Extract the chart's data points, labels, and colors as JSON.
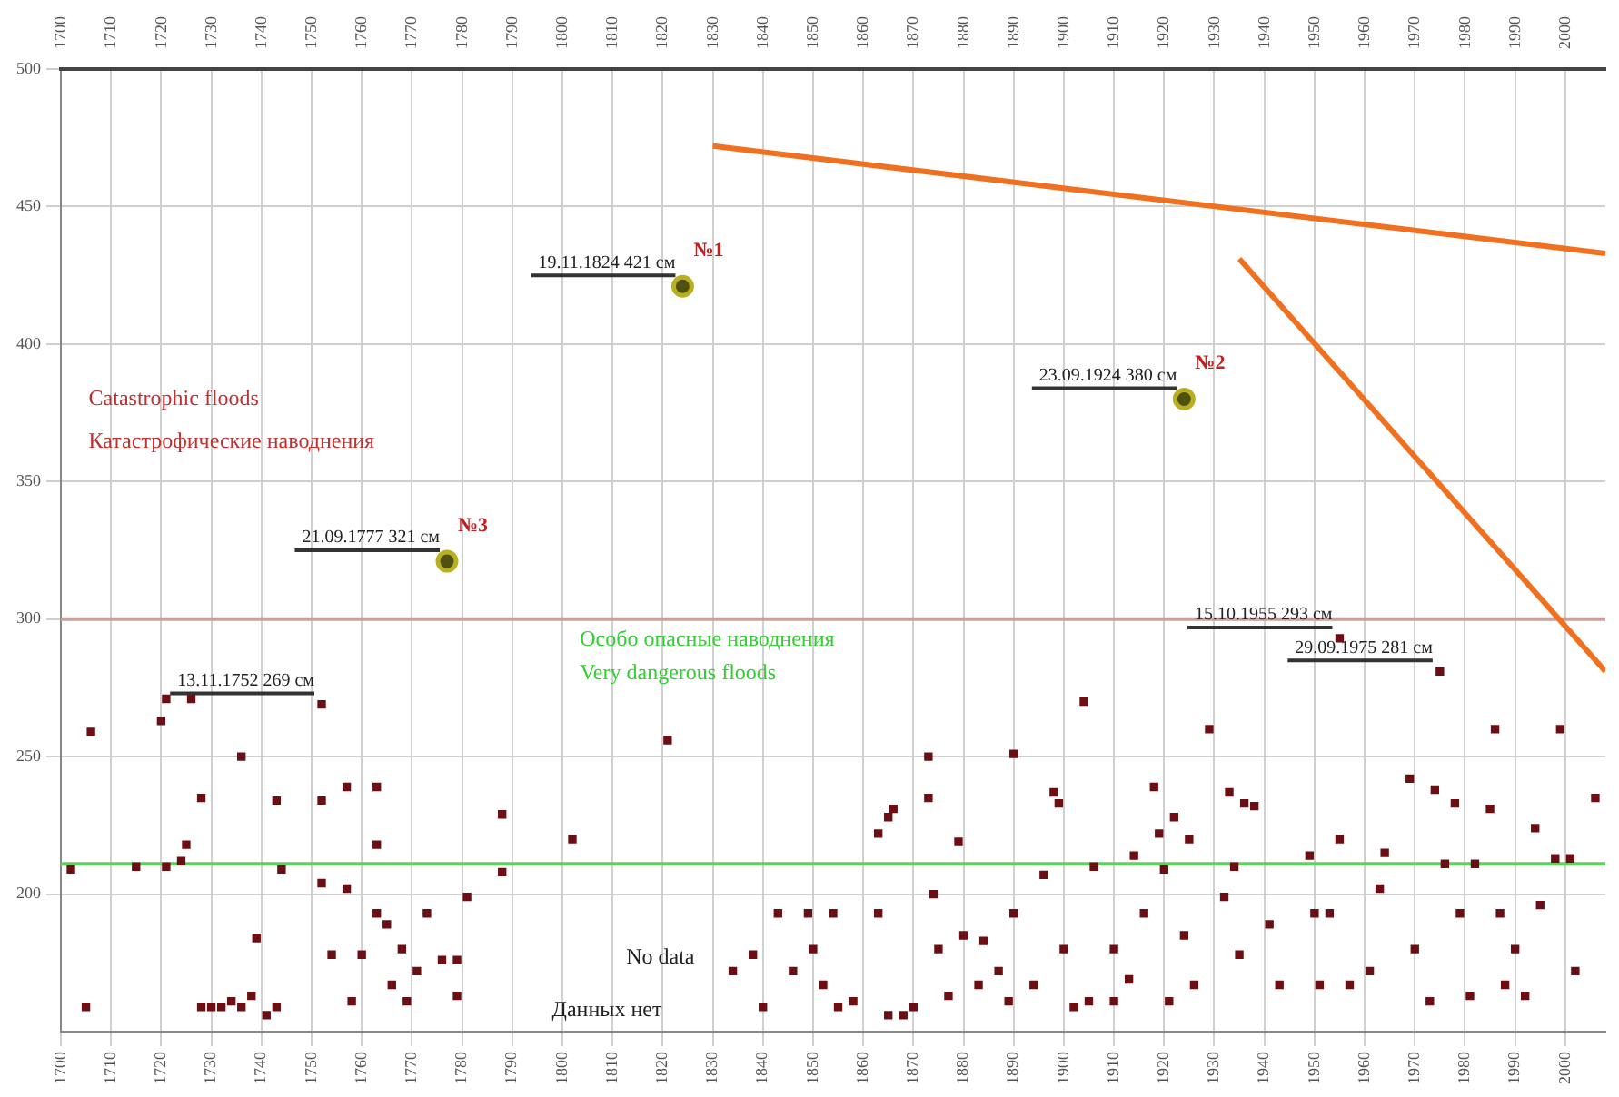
{
  "chart_data": {
    "type": "scatter",
    "xlim": [
      1700,
      2008
    ],
    "xticks": [
      1700,
      1710,
      1720,
      1730,
      1740,
      1750,
      1760,
      1770,
      1780,
      1790,
      1800,
      1810,
      1820,
      1830,
      1840,
      1850,
      1860,
      1870,
      1880,
      1890,
      1900,
      1910,
      1920,
      1930,
      1940,
      1950,
      1960,
      1970,
      1980,
      1990,
      2000
    ],
    "x2lim": [
      1700,
      2008
    ],
    "x2ticks": [
      1700,
      1710,
      1720,
      1730,
      1740,
      1750,
      1760,
      1770,
      1780,
      1790,
      1800,
      1810,
      1820,
      1830,
      1840,
      1850,
      1860,
      1870,
      1880,
      1890,
      1900,
      1910,
      1920,
      1930,
      1940,
      1950,
      1960,
      1970,
      1980,
      1990,
      2000
    ],
    "ylim": [
      150,
      500
    ],
    "yticks": [
      200,
      250,
      300,
      350,
      400,
      450,
      500
    ],
    "grid": true,
    "legend": false,
    "series": [
      {
        "type": "scatter",
        "marker": "square",
        "color": "#6b0f14",
        "x": [
          1702,
          1706,
          1705,
          1715,
          1720,
          1721,
          1726,
          1721,
          1724,
          1725,
          1728,
          1728,
          1730,
          1732,
          1734,
          1736,
          1738,
          1739,
          1741,
          1743,
          1736,
          1743,
          1744,
          1752,
          1752,
          1752,
          1754,
          1757,
          1757,
          1758,
          1760,
          1763,
          1763,
          1763,
          1765,
          1766,
          1768,
          1769,
          1771,
          1773,
          1776,
          1779,
          1779,
          1781,
          1788,
          1788,
          1802,
          1821,
          1834,
          1838,
          1840,
          1843,
          1846,
          1849,
          1850,
          1852,
          1854,
          1855,
          1858,
          1863,
          1863,
          1865,
          1866,
          1865,
          1868,
          1870,
          1873,
          1873,
          1874,
          1875,
          1877,
          1879,
          1880,
          1883,
          1884,
          1887,
          1889,
          1890,
          1890,
          1894,
          1896,
          1898,
          1899,
          1900,
          1902,
          1904,
          1905,
          1906,
          1910,
          1910,
          1913,
          1914,
          1916,
          1918,
          1919,
          1920,
          1921,
          1922,
          1924,
          1925,
          1926,
          1929,
          1932,
          1933,
          1934,
          1935,
          1936,
          1938,
          1941,
          1943,
          1949,
          1950,
          1951,
          1953,
          1955,
          1955,
          1957,
          1961,
          1963,
          1964,
          1969,
          1970,
          1973,
          1974,
          1975,
          1976,
          1978,
          1979,
          1981,
          1982,
          1985,
          1986,
          1987,
          1988,
          1990,
          1992,
          1994,
          1995,
          1998,
          1999,
          2001,
          2002,
          2006
        ],
        "values": [
          209,
          259,
          159,
          210,
          263,
          271,
          271,
          210,
          212,
          218,
          235,
          159,
          159,
          159,
          161,
          159,
          163,
          184,
          156,
          159,
          250,
          234,
          209,
          234,
          269,
          204,
          178,
          239,
          202,
          161,
          178,
          239,
          218,
          193,
          189,
          167,
          180,
          161,
          172,
          193,
          176,
          176,
          163,
          199,
          229,
          208,
          220,
          256,
          172,
          178,
          159,
          193,
          172,
          193,
          180,
          167,
          193,
          159,
          161,
          193,
          222,
          228,
          231,
          156,
          156,
          159,
          250,
          235,
          200,
          180,
          163,
          219,
          185,
          167,
          183,
          172,
          161,
          193,
          251,
          167,
          207,
          237,
          233,
          180,
          159,
          270,
          161,
          210,
          161,
          180,
          169,
          214,
          193,
          239,
          222,
          209,
          161,
          228,
          185,
          220,
          167,
          260,
          199,
          237,
          210,
          178,
          233,
          232,
          189,
          167,
          214,
          193,
          167,
          193,
          293,
          220,
          167,
          172,
          202,
          215,
          242,
          180,
          161,
          238,
          281,
          211,
          233,
          193,
          163,
          211,
          231,
          260,
          193,
          167,
          180,
          163,
          224,
          196,
          213,
          260,
          213,
          172,
          235
        ]
      },
      {
        "type": "scatter",
        "marker": "circle",
        "color": "#b8b020",
        "x": [
          1777,
          1824,
          1924
        ],
        "values": [
          321,
          421,
          380
        ]
      },
      {
        "type": "line",
        "color": "#f07020",
        "x": [
          1830,
          2008
        ],
        "values": [
          472,
          433
        ]
      },
      {
        "type": "line",
        "color": "#f07020",
        "x": [
          1935,
          2008
        ],
        "values": [
          431,
          281
        ]
      }
    ],
    "ref_lines": [
      {
        "axis": "y",
        "value": 300,
        "color": "#c8a0a0"
      },
      {
        "axis": "y",
        "value": 211,
        "color": "#60d060"
      }
    ],
    "annotations": [
      "Catastrophic floods",
      "Катастрофические наводнения",
      "Особо опасные наводнения",
      "Very dangerous floods",
      "No data",
      "Данных нет",
      {
        "text": "13.11.1752 269 см",
        "x": 1752,
        "y": 269
      },
      {
        "text": "21.09.1777 321 см",
        "x": 1777,
        "y": 321
      },
      {
        "text": "№3",
        "x": 1777,
        "y": 321
      },
      {
        "text": "19.11.1824 421 см",
        "x": 1824,
        "y": 421
      },
      {
        "text": "№1",
        "x": 1824,
        "y": 421
      },
      {
        "text": "23.09.1924 380 см",
        "x": 1924,
        "y": 380
      },
      {
        "text": "№2",
        "x": 1924,
        "y": 380
      },
      {
        "text": "15.10.1955 293 см",
        "x": 1955,
        "y": 293
      },
      {
        "text": "29.09.1975 281 см",
        "x": 1975,
        "y": 281
      }
    ]
  }
}
